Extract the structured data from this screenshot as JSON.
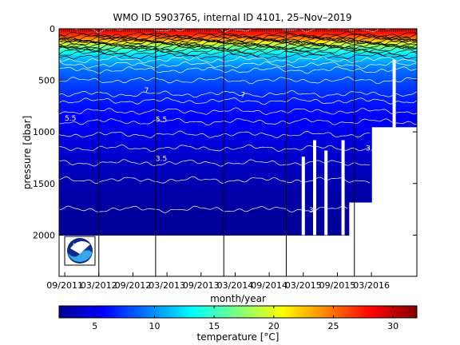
{
  "chart_data": {
    "type": "heatmap",
    "title": "WMO ID 5903765, internal ID 4101, 25–Nov–2019",
    "xlabel": "month/year",
    "ylabel": "pressure [dbar]",
    "x_tick_labels": [
      "09/2011",
      "03/2012",
      "09/2012",
      "03/2013",
      "09/2013",
      "03/2014",
      "09/2014",
      "03/2015",
      "09/2015",
      "03/2016"
    ],
    "x_tick_dates": [
      "2011-09",
      "2012-03",
      "2012-09",
      "2013-03",
      "2013-09",
      "2014-03",
      "2014-09",
      "2015-03",
      "2015-09",
      "2016-03"
    ],
    "xlim": [
      "2011-08",
      "2016-11"
    ],
    "y_ticks": [
      0,
      500,
      1000,
      1500,
      2000
    ],
    "ylim": [
      0,
      2400
    ],
    "y_reversed": true,
    "colorbar": {
      "label": "temperature [°C]",
      "ticks": [
        5,
        10,
        15,
        20,
        25,
        30
      ],
      "range": [
        2,
        32
      ],
      "colormap": "jet"
    },
    "temperature_profile": [
      {
        "pressure": 0,
        "temperature": 28
      },
      {
        "pressure": 50,
        "temperature": 27.5
      },
      {
        "pressure": 100,
        "temperature": 24
      },
      {
        "pressure": 150,
        "temperature": 19
      },
      {
        "pressure": 200,
        "temperature": 15
      },
      {
        "pressure": 250,
        "temperature": 12.5
      },
      {
        "pressure": 300,
        "temperature": 11
      },
      {
        "pressure": 400,
        "temperature": 9
      },
      {
        "pressure": 500,
        "temperature": 8
      },
      {
        "pressure": 700,
        "temperature": 6.5
      },
      {
        "pressure": 900,
        "temperature": 5.5
      },
      {
        "pressure": 1100,
        "temperature": 4.7
      },
      {
        "pressure": 1300,
        "temperature": 4
      },
      {
        "pressure": 1500,
        "temperature": 3.4
      },
      {
        "pressure": 1750,
        "temperature": 3
      },
      {
        "pressure": 2000,
        "temperature": 2.7
      }
    ],
    "contour_levels_black": [
      12,
      13,
      14,
      15,
      16,
      17,
      18,
      19,
      20,
      21,
      22,
      23,
      24,
      25,
      26,
      27
    ],
    "contour_levels_white": [
      3,
      3.5,
      4,
      4.5,
      5,
      5.5,
      6,
      6.5,
      7,
      8,
      9,
      10,
      11,
      28
    ],
    "contour_labels": [
      {
        "text": "3.5",
        "date": "2013-01",
        "pressure": 1280
      },
      {
        "text": "5.5",
        "date": "2011-09",
        "pressure": 890
      },
      {
        "text": "5.5",
        "date": "2013-01",
        "pressure": 900
      },
      {
        "text": "3.5",
        "date": "2016-02",
        "pressure": 1180
      },
      {
        "text": "3",
        "date": "2015-04",
        "pressure": 1780
      },
      {
        "text": "7",
        "date": "2012-11",
        "pressure": 620
      },
      {
        "text": "7",
        "date": "2014-04",
        "pressure": 660
      }
    ],
    "max_depth_segments": [
      {
        "from": "2011-08",
        "to": "2015-11",
        "pressure": 2000
      },
      {
        "from": "2015-11",
        "to": "2016-03",
        "pressure": 1680
      },
      {
        "from": "2016-03",
        "to": "2016-11",
        "pressure": 950
      }
    ],
    "sample_gaps": [
      {
        "date": "2015-03",
        "from_pressure": 1240,
        "to_pressure": 2000
      },
      {
        "date": "2015-05",
        "from_pressure": 1080,
        "to_pressure": 2000
      },
      {
        "date": "2015-07",
        "from_pressure": 1180,
        "to_pressure": 2000
      },
      {
        "date": "2015-10",
        "from_pressure": 1080,
        "to_pressure": 2000
      },
      {
        "date": "2016-07",
        "from_pressure": 300,
        "to_pressure": 1000
      }
    ],
    "marker_lines": [
      "2012-03",
      "2013-01",
      "2014-01",
      "2014-12",
      "2015-12"
    ],
    "grid": false,
    "logo": {
      "text": "NOAA"
    }
  }
}
